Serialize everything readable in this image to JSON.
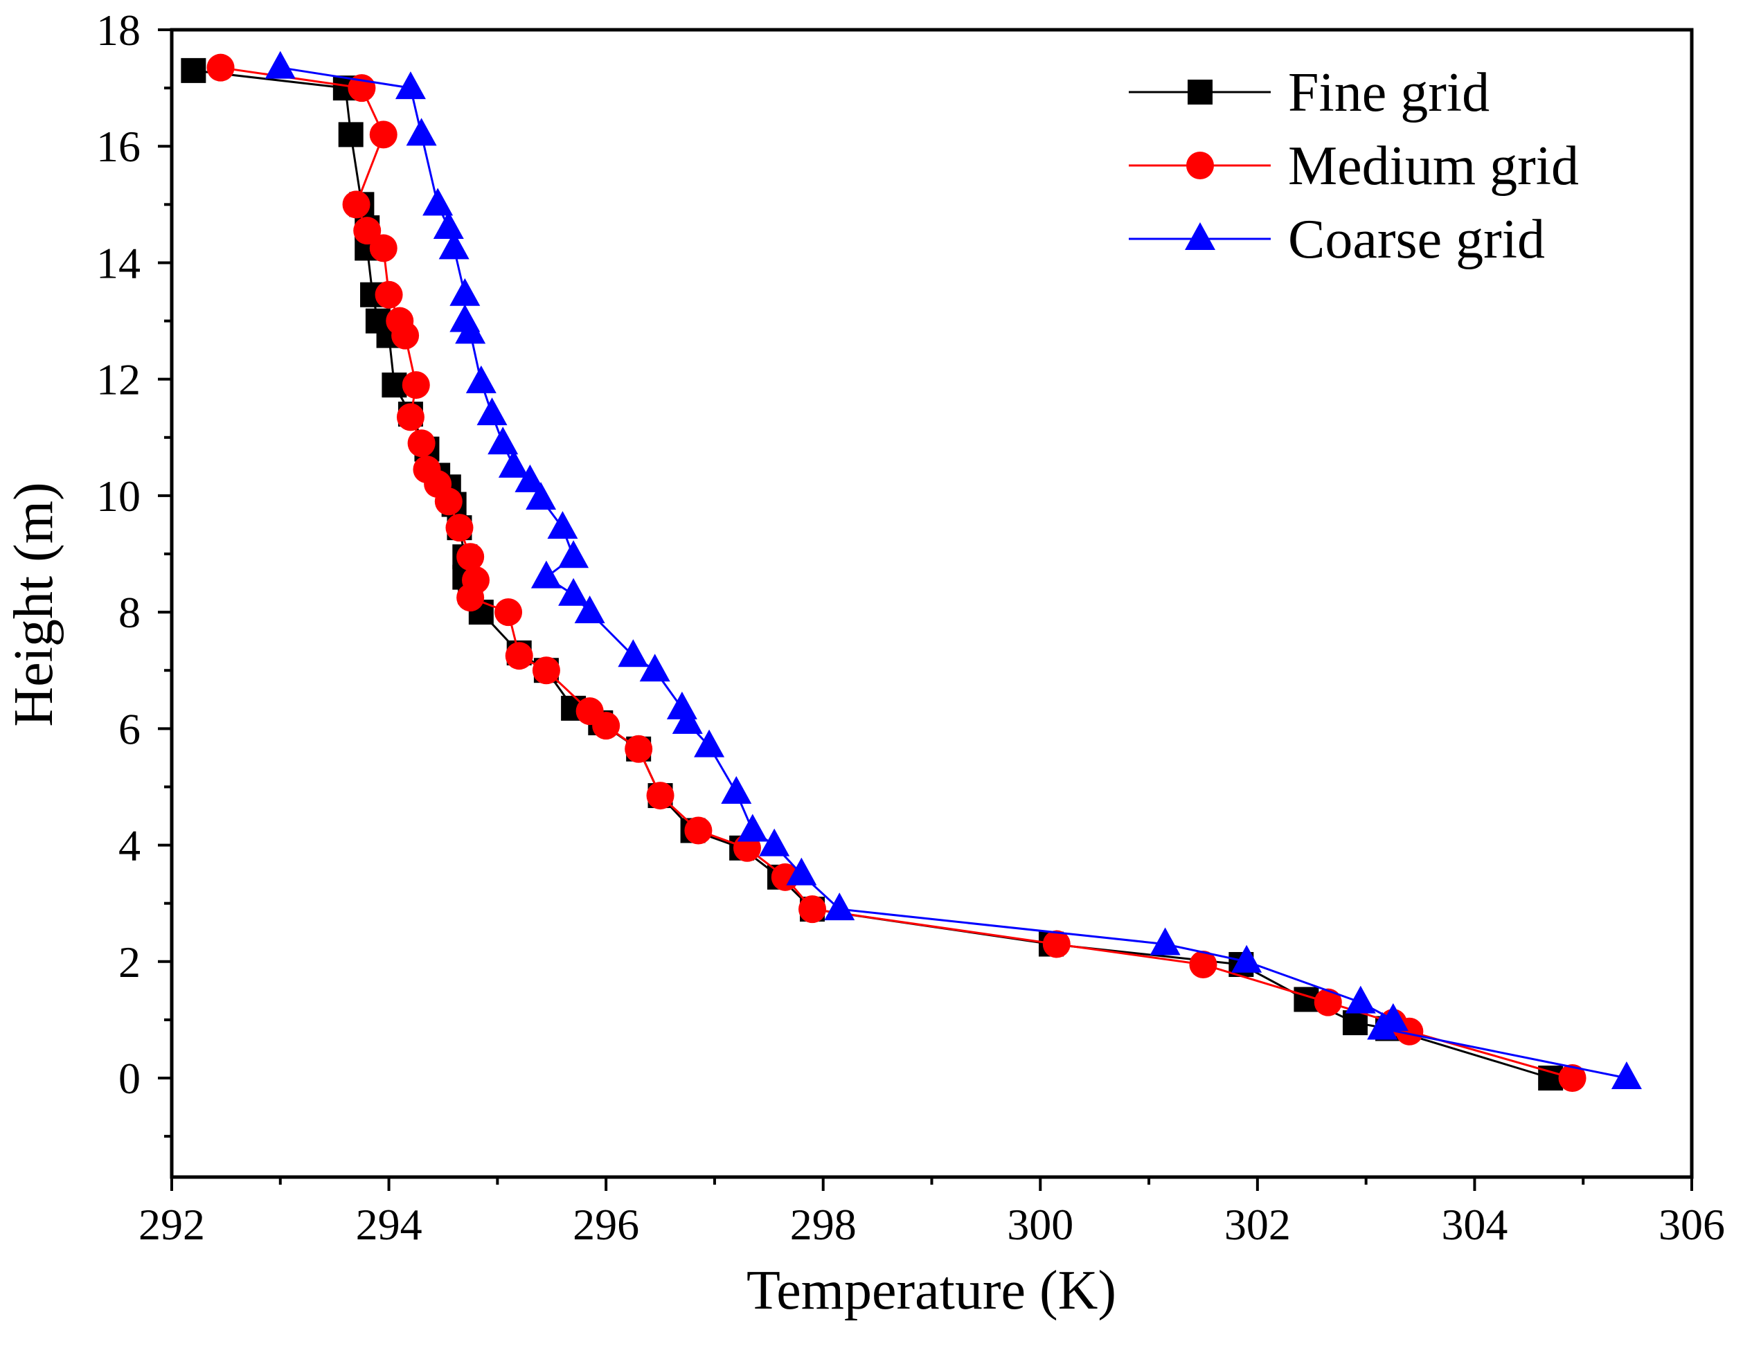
{
  "chart_data": {
    "type": "line",
    "title": "",
    "xlabel": "Temperature (K)",
    "ylabel": "Height (m)",
    "xlim": [
      292,
      306
    ],
    "ylim": [
      -1.7,
      18
    ],
    "xticks": [
      292,
      294,
      296,
      298,
      300,
      302,
      304,
      306
    ],
    "yticks": [
      0,
      2,
      4,
      6,
      8,
      10,
      12,
      14,
      16,
      18
    ],
    "grid": false,
    "legend_position": "top-right",
    "series": [
      {
        "name": "Fine grid",
        "color": "#000000",
        "marker": "square",
        "points": [
          [
            292.2,
            17.3
          ],
          [
            293.6,
            17.0
          ],
          [
            293.65,
            16.2
          ],
          [
            293.75,
            15.0
          ],
          [
            293.8,
            14.6
          ],
          [
            293.8,
            14.25
          ],
          [
            293.85,
            13.45
          ],
          [
            293.9,
            13.0
          ],
          [
            294.0,
            12.75
          ],
          [
            294.05,
            11.9
          ],
          [
            294.2,
            11.4
          ],
          [
            294.35,
            10.8
          ],
          [
            294.45,
            10.35
          ],
          [
            294.55,
            10.15
          ],
          [
            294.6,
            9.85
          ],
          [
            294.65,
            9.45
          ],
          [
            294.7,
            8.95
          ],
          [
            294.7,
            8.6
          ],
          [
            294.75,
            8.35
          ],
          [
            294.85,
            8.0
          ],
          [
            295.2,
            7.3
          ],
          [
            295.45,
            7.0
          ],
          [
            295.7,
            6.35
          ],
          [
            295.95,
            6.1
          ],
          [
            296.3,
            5.65
          ],
          [
            296.5,
            4.85
          ],
          [
            296.8,
            4.25
          ],
          [
            297.25,
            3.95
          ],
          [
            297.6,
            3.45
          ],
          [
            297.9,
            2.9
          ],
          [
            300.1,
            2.3
          ],
          [
            301.85,
            1.95
          ],
          [
            302.45,
            1.35
          ],
          [
            302.9,
            0.95
          ],
          [
            303.2,
            0.85
          ],
          [
            304.7,
            0.0
          ]
        ]
      },
      {
        "name": "Medium grid",
        "color": "#ff0000",
        "marker": "circle",
        "points": [
          [
            292.45,
            17.35
          ],
          [
            293.75,
            17.0
          ],
          [
            293.95,
            16.2
          ],
          [
            293.7,
            15.0
          ],
          [
            293.8,
            14.55
          ],
          [
            293.95,
            14.25
          ],
          [
            294.0,
            13.45
          ],
          [
            294.1,
            13.0
          ],
          [
            294.15,
            12.75
          ],
          [
            294.25,
            11.9
          ],
          [
            294.2,
            11.35
          ],
          [
            294.3,
            10.9
          ],
          [
            294.35,
            10.45
          ],
          [
            294.45,
            10.2
          ],
          [
            294.55,
            9.9
          ],
          [
            294.65,
            9.45
          ],
          [
            294.75,
            8.95
          ],
          [
            294.8,
            8.55
          ],
          [
            294.75,
            8.25
          ],
          [
            295.1,
            8.0
          ],
          [
            295.2,
            7.25
          ],
          [
            295.45,
            7.0
          ],
          [
            295.85,
            6.3
          ],
          [
            296.0,
            6.05
          ],
          [
            296.3,
            5.65
          ],
          [
            296.5,
            4.85
          ],
          [
            296.85,
            4.25
          ],
          [
            297.3,
            3.95
          ],
          [
            297.65,
            3.45
          ],
          [
            297.9,
            2.9
          ],
          [
            300.15,
            2.3
          ],
          [
            301.5,
            1.95
          ],
          [
            302.65,
            1.3
          ],
          [
            303.25,
            0.95
          ],
          [
            303.4,
            0.8
          ],
          [
            304.9,
            0.0
          ]
        ]
      },
      {
        "name": "Coarse grid",
        "color": "#0000ff",
        "marker": "triangle",
        "points": [
          [
            293.0,
            17.35
          ],
          [
            294.2,
            17.0
          ],
          [
            294.3,
            16.2
          ],
          [
            294.45,
            15.0
          ],
          [
            294.55,
            14.6
          ],
          [
            294.6,
            14.25
          ],
          [
            294.7,
            13.45
          ],
          [
            294.7,
            13.0
          ],
          [
            294.75,
            12.8
          ],
          [
            294.85,
            11.95
          ],
          [
            294.95,
            11.4
          ],
          [
            295.05,
            10.9
          ],
          [
            295.15,
            10.5
          ],
          [
            295.3,
            10.25
          ],
          [
            295.4,
            9.95
          ],
          [
            295.6,
            9.45
          ],
          [
            295.7,
            8.95
          ],
          [
            295.45,
            8.6
          ],
          [
            295.7,
            8.3
          ],
          [
            295.85,
            8.0
          ],
          [
            296.25,
            7.25
          ],
          [
            296.45,
            7.0
          ],
          [
            296.7,
            6.35
          ],
          [
            296.75,
            6.1
          ],
          [
            296.95,
            5.7
          ],
          [
            297.2,
            4.9
          ],
          [
            297.35,
            4.25
          ],
          [
            297.55,
            4.0
          ],
          [
            297.8,
            3.5
          ],
          [
            298.15,
            2.9
          ],
          [
            301.15,
            2.3
          ],
          [
            301.9,
            2.0
          ],
          [
            302.95,
            1.3
          ],
          [
            303.25,
            1.0
          ],
          [
            303.15,
            0.85
          ],
          [
            305.4,
            0.0
          ]
        ]
      }
    ]
  }
}
